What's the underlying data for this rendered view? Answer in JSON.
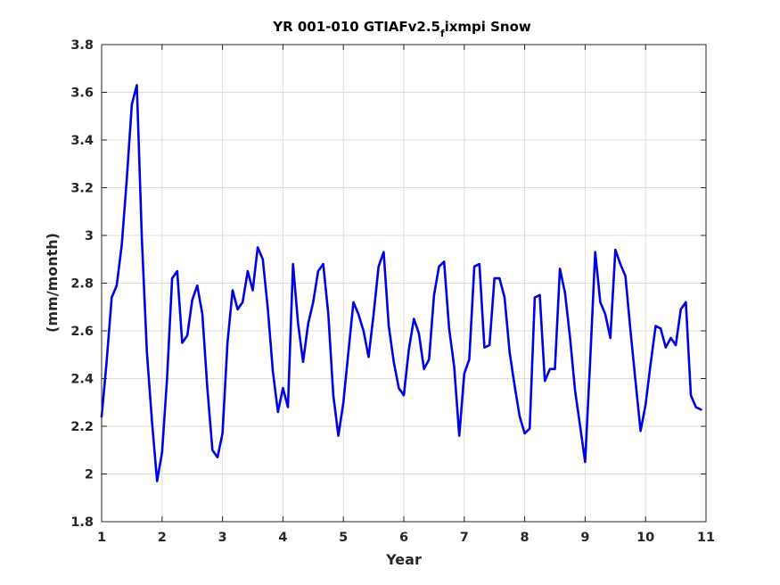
{
  "chart_data": {
    "type": "line",
    "title": {
      "main": "YR 001-010 GTIAFv2.5",
      "subscript": "f",
      "suffix": "ixmpi Snow"
    },
    "xlabel": "Year",
    "ylabel": "(mm/month)",
    "xlim": [
      1,
      11
    ],
    "ylim": [
      1.8,
      3.8
    ],
    "xticks": [
      1,
      2,
      3,
      4,
      5,
      6,
      7,
      8,
      9,
      10,
      11
    ],
    "yticks": [
      1.8,
      2,
      2.2,
      2.4,
      2.6,
      2.8,
      3,
      3.2,
      3.4,
      3.6,
      3.8
    ],
    "xtick_labels": [
      "1",
      "2",
      "3",
      "4",
      "5",
      "6",
      "7",
      "8",
      "9",
      "10",
      "11"
    ],
    "ytick_labels": [
      "1.8",
      "2",
      "2.2",
      "2.4",
      "2.6",
      "2.8",
      "3",
      "3.2",
      "3.4",
      "3.6",
      "3.8"
    ],
    "grid": true,
    "legend": "none",
    "series": [
      {
        "color": "#0000e6",
        "x": [
          1.0,
          1.083,
          1.167,
          1.25,
          1.333,
          1.417,
          1.5,
          1.583,
          1.667,
          1.75,
          1.833,
          1.917,
          2.0,
          2.083,
          2.167,
          2.25,
          2.333,
          2.417,
          2.5,
          2.583,
          2.667,
          2.75,
          2.833,
          2.917,
          3.0,
          3.083,
          3.167,
          3.25,
          3.333,
          3.417,
          3.5,
          3.583,
          3.667,
          3.75,
          3.833,
          3.917,
          4.0,
          4.083,
          4.167,
          4.25,
          4.333,
          4.417,
          4.5,
          4.583,
          4.667,
          4.75,
          4.833,
          4.917,
          5.0,
          5.083,
          5.167,
          5.25,
          5.333,
          5.417,
          5.5,
          5.583,
          5.667,
          5.75,
          5.833,
          5.917,
          6.0,
          6.083,
          6.167,
          6.25,
          6.333,
          6.417,
          6.5,
          6.583,
          6.667,
          6.75,
          6.833,
          6.917,
          7.0,
          7.083,
          7.167,
          7.25,
          7.333,
          7.417,
          7.5,
          7.583,
          7.667,
          7.75,
          7.833,
          7.917,
          8.0,
          8.083,
          8.167,
          8.25,
          8.333,
          8.417,
          8.5,
          8.583,
          8.667,
          8.75,
          8.833,
          8.917,
          9.0,
          9.083,
          9.167,
          9.25,
          9.333,
          9.417,
          9.5,
          9.583,
          9.667,
          9.75,
          9.833,
          9.917,
          10.0,
          10.083,
          10.167,
          10.25,
          10.333,
          10.417,
          10.5,
          10.583,
          10.667,
          10.75,
          10.833,
          10.917
        ],
        "y": [
          2.24,
          2.47,
          2.74,
          2.79,
          2.96,
          3.24,
          3.55,
          3.63,
          2.98,
          2.51,
          2.22,
          1.97,
          2.09,
          2.4,
          2.82,
          2.85,
          2.55,
          2.58,
          2.73,
          2.79,
          2.67,
          2.36,
          2.1,
          2.07,
          2.17,
          2.55,
          2.77,
          2.69,
          2.72,
          2.85,
          2.77,
          2.95,
          2.9,
          2.69,
          2.43,
          2.26,
          2.36,
          2.28,
          2.88,
          2.63,
          2.47,
          2.63,
          2.72,
          2.85,
          2.88,
          2.67,
          2.33,
          2.16,
          2.3,
          2.51,
          2.72,
          2.67,
          2.6,
          2.49,
          2.67,
          2.87,
          2.93,
          2.62,
          2.47,
          2.36,
          2.33,
          2.52,
          2.65,
          2.59,
          2.44,
          2.48,
          2.75,
          2.87,
          2.89,
          2.61,
          2.45,
          2.16,
          2.42,
          2.48,
          2.87,
          2.88,
          2.53,
          2.54,
          2.82,
          2.82,
          2.74,
          2.51,
          2.37,
          2.24,
          2.17,
          2.19,
          2.74,
          2.75,
          2.39,
          2.44,
          2.44,
          2.86,
          2.76,
          2.57,
          2.35,
          2.2,
          2.05,
          2.47,
          2.93,
          2.72,
          2.67,
          2.57,
          2.94,
          2.88,
          2.83,
          2.6,
          2.39,
          2.18,
          2.29,
          2.46,
          2.62,
          2.61,
          2.53,
          2.57,
          2.54,
          2.69,
          2.72,
          2.33,
          2.28,
          2.27
        ]
      }
    ]
  }
}
